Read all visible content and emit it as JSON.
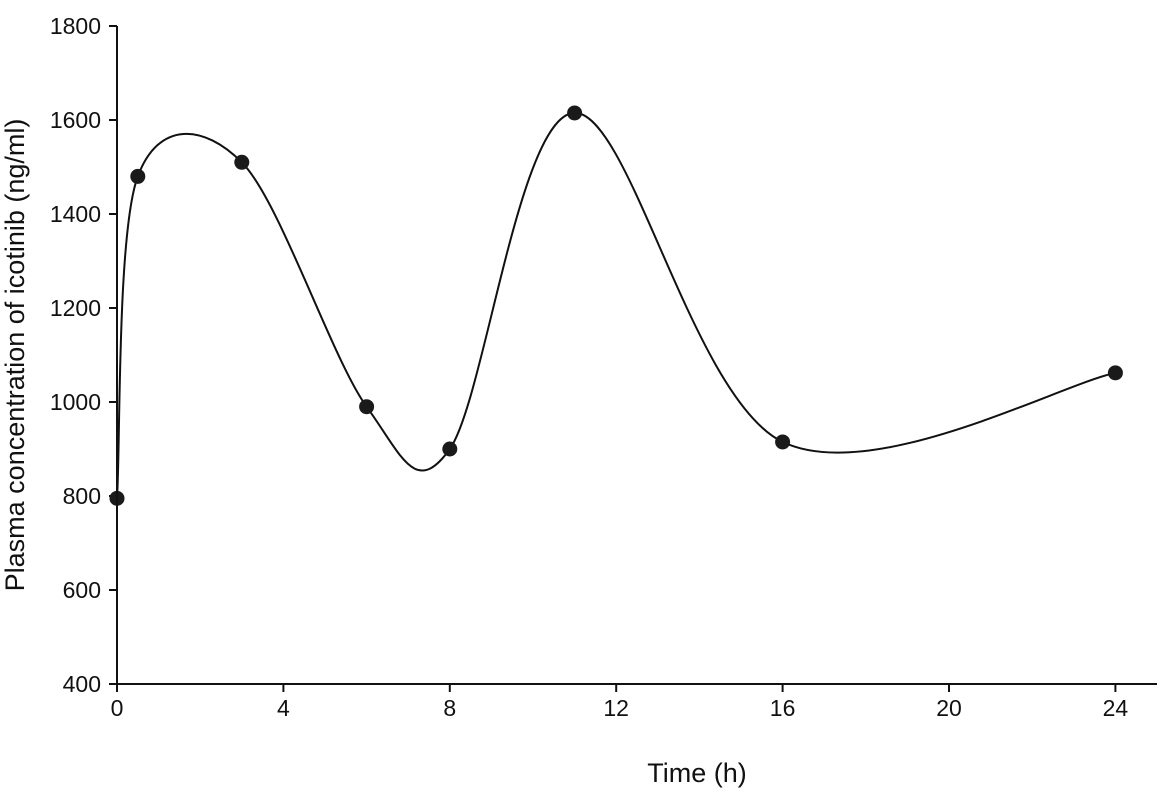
{
  "chart_data": {
    "type": "line",
    "title": "",
    "xlabel": "Time (h)",
    "ylabel": "Plasma concentration of icotinib (ng/ml)",
    "xlim": [
      0,
      25
    ],
    "ylim": [
      400,
      1800
    ],
    "xticks": [
      0,
      4,
      8,
      12,
      16,
      20,
      24
    ],
    "yticks": [
      400,
      600,
      800,
      1000,
      1200,
      1400,
      1600,
      1800
    ],
    "grid": false,
    "legend": "none",
    "smooth": true,
    "series": [
      {
        "x": [
          0,
          0.5,
          3,
          6,
          8,
          11,
          16,
          24
        ],
        "y": [
          795,
          1480,
          1510,
          990,
          900,
          1615,
          915,
          1062
        ],
        "color": "#111111"
      }
    ]
  }
}
